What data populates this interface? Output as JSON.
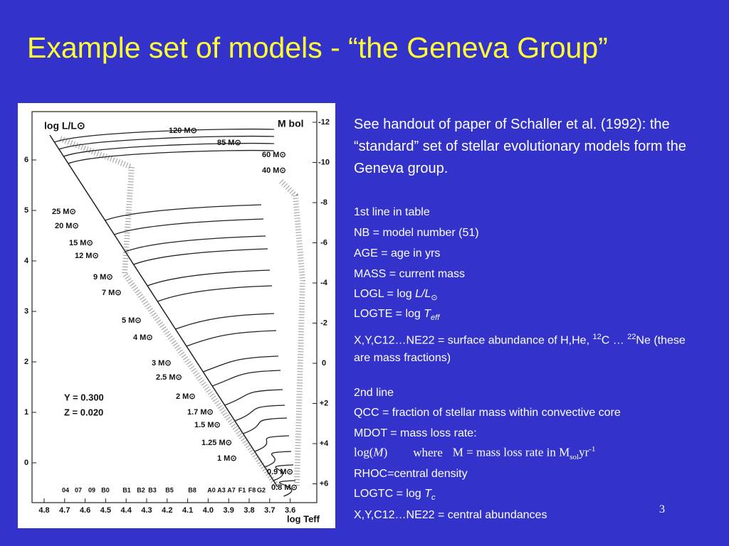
{
  "title": "Example set of models  - “the Geneva Group”",
  "intro": "See handout of paper of  Schaller et al. (1992):  the “standard” set of stellar evolutionary models form the Geneva group.",
  "line1": {
    "heading": "1st line in table",
    "nb": "NB = model number (51)",
    "age": "AGE = age in yrs",
    "mass": "MASS = current mass",
    "logl": {
      "prefix": "LOGL = log ",
      "symbol": "L/L",
      "sub": "⊙"
    },
    "logte": {
      "prefix": "LOGTE = log ",
      "symbol": "T",
      "sub": "eff"
    },
    "surface": {
      "a": "X,Y,C12…NE22 = surface abundance of H,He, ",
      "sup1": "12",
      "b": "C … ",
      "sup2": "22",
      "c": "Ne (these are mass fractions)"
    }
  },
  "line2": {
    "heading": "2nd line",
    "qcc": "QCC = fraction of stellar mass within convective core",
    "mdot": "MDOT = mass loss rate:",
    "formula": {
      "log": "log(",
      "m": "M",
      "close": ")",
      "where": "where",
      "def": "M = mass loss rate in M",
      "sub": "sol",
      "yr": "yr",
      "exp": "-1"
    },
    "rhoc": "RHOC=central density",
    "logtc": {
      "prefix": "LOGTC = log ",
      "symbol": "T",
      "sub": "c"
    },
    "central": "X,Y,C12…NE22 = central abundances"
  },
  "page_number": "3",
  "figure": {
    "y_title": "log L/L⊙",
    "y2_title": "M bol",
    "x_title": "log Teff",
    "yticks": [
      "6",
      "5",
      "4",
      "3",
      "2",
      "1",
      "0"
    ],
    "y2ticks": [
      "-12",
      "-10",
      "-8",
      "-6",
      "-4",
      "-2",
      "0",
      "+2",
      "+4",
      "+6"
    ],
    "xticks": [
      "4.8",
      "4.7",
      "4.6",
      "4.5",
      "4.4",
      "4.3",
      "4.2",
      "4.1",
      "4.0",
      "3.9",
      "3.8",
      "3.7",
      "3.6"
    ],
    "spectral": [
      "04",
      "07",
      "09",
      "B0",
      "B1",
      "B2",
      "B3",
      "B5",
      "B8",
      "A0",
      "A3",
      "A7",
      "F1",
      "F8",
      "G2"
    ],
    "masses": [
      "120 M⊙",
      "85 M⊙",
      "60 M⊙",
      "40 M⊙",
      "25 M⊙",
      "20 M⊙",
      "15 M⊙",
      "12 M⊙",
      "9 M⊙",
      "7 M⊙",
      "5 M⊙",
      "4 M⊙",
      "3 M⊙",
      "2.5 M⊙",
      "2 M⊙",
      "1.7 M⊙",
      "1.5 M⊙",
      "1.25 M⊙",
      "1 M⊙",
      "0.9 M⊙",
      "0.8 M⊙"
    ],
    "composition": [
      "Y = 0.300",
      "Z = 0.020"
    ]
  }
}
